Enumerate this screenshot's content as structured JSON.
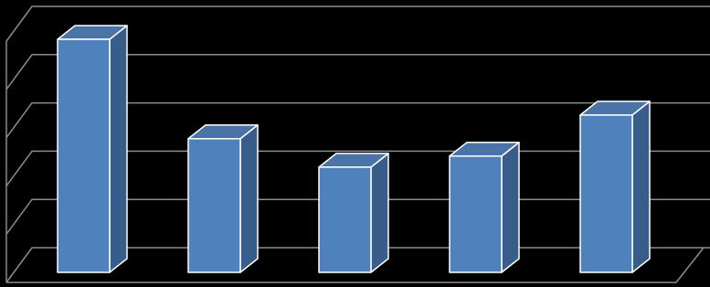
{
  "chart_data": {
    "type": "bar3d",
    "categories": [
      null,
      null,
      null,
      null,
      null
    ],
    "values": [
      4.83,
      2.77,
      2.18,
      2.41,
      3.26
    ],
    "color": "#4f81bd",
    "ylim": [
      0,
      5
    ],
    "yticks": [
      0,
      1,
      2,
      3,
      4,
      5
    ],
    "grid": true
  }
}
